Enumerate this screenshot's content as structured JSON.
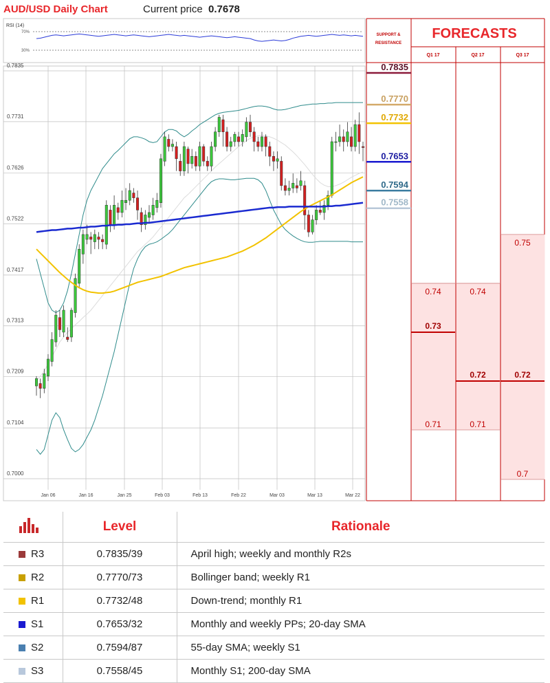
{
  "header": {
    "title": "AUD/USD Daily Chart",
    "price_label": "Current price",
    "price_value": "0.7678"
  },
  "rsi": {
    "label": "RSI (14)",
    "levels": [
      "70%",
      "30%"
    ]
  },
  "chart_data": {
    "type": "candlestick",
    "ylim": [
      0.6995,
      0.784
    ],
    "y_ticks": [
      "0.7835",
      "0.7731",
      "0.7626",
      "0.7522",
      "0.7417",
      "0.7313",
      "0.7209",
      "0.7104",
      "0.7000"
    ],
    "x_ticks": [
      "Jan 06",
      "Jan 16",
      "Jan 25",
      "Feb 03",
      "Feb 13",
      "Feb 22",
      "Mar 03",
      "Mar 13",
      "Mar 22"
    ],
    "candles": [
      [
        0.719,
        0.7205,
        0.717,
        0.721
      ],
      [
        0.7195,
        0.7185,
        0.7165,
        0.7205
      ],
      [
        0.7185,
        0.7215,
        0.7175,
        0.7225
      ],
      [
        0.721,
        0.7245,
        0.72,
        0.7255
      ],
      [
        0.724,
        0.7285,
        0.723,
        0.73
      ],
      [
        0.728,
        0.7335,
        0.727,
        0.7345
      ],
      [
        0.733,
        0.7305,
        0.729,
        0.7345
      ],
      [
        0.73,
        0.7345,
        0.729,
        0.7355
      ],
      [
        0.729,
        0.7285,
        0.728,
        0.731
      ],
      [
        0.729,
        0.7345,
        0.728,
        0.735
      ],
      [
        0.734,
        0.741,
        0.733,
        0.742
      ],
      [
        0.74,
        0.747,
        0.739,
        0.748
      ],
      [
        0.746,
        0.75,
        0.744,
        0.751
      ],
      [
        0.749,
        0.75,
        0.748,
        0.752
      ],
      [
        0.7495,
        0.749,
        0.746,
        0.7505
      ],
      [
        0.7485,
        0.75,
        0.747,
        0.751
      ],
      [
        0.7495,
        0.749,
        0.747,
        0.7505
      ],
      [
        0.749,
        0.7485,
        0.747,
        0.75
      ],
      [
        0.748,
        0.756,
        0.747,
        0.757
      ],
      [
        0.755,
        0.752,
        0.7505,
        0.756
      ],
      [
        0.752,
        0.756,
        0.751,
        0.758
      ],
      [
        0.7555,
        0.7545,
        0.753,
        0.7565
      ],
      [
        0.7545,
        0.757,
        0.7535,
        0.759
      ],
      [
        0.7565,
        0.757,
        0.755,
        0.7595
      ],
      [
        0.757,
        0.759,
        0.756,
        0.7605
      ],
      [
        0.7585,
        0.7575,
        0.7565,
        0.7595
      ],
      [
        0.7575,
        0.755,
        0.753,
        0.759
      ],
      [
        0.7545,
        0.752,
        0.7505,
        0.7555
      ],
      [
        0.752,
        0.754,
        0.751,
        0.755
      ],
      [
        0.7535,
        0.7545,
        0.7525,
        0.756
      ],
      [
        0.754,
        0.756,
        0.753,
        0.7575
      ],
      [
        0.7555,
        0.757,
        0.7545,
        0.7585
      ],
      [
        0.7565,
        0.7655,
        0.7555,
        0.7665
      ],
      [
        0.765,
        0.77,
        0.764,
        0.771
      ],
      [
        0.7695,
        0.768,
        0.767,
        0.7705
      ],
      [
        0.768,
        0.7685,
        0.767,
        0.7695
      ],
      [
        0.768,
        0.7655,
        0.763,
        0.769
      ],
      [
        0.765,
        0.763,
        0.762,
        0.7665
      ],
      [
        0.763,
        0.768,
        0.762,
        0.769
      ],
      [
        0.7675,
        0.7645,
        0.7625,
        0.768
      ],
      [
        0.7645,
        0.766,
        0.7635,
        0.7675
      ],
      [
        0.766,
        0.764,
        0.763,
        0.767
      ],
      [
        0.764,
        0.768,
        0.763,
        0.769
      ],
      [
        0.768,
        0.765,
        0.764,
        0.7685
      ],
      [
        0.765,
        0.764,
        0.763,
        0.766
      ],
      [
        0.764,
        0.768,
        0.763,
        0.769
      ],
      [
        0.768,
        0.771,
        0.767,
        0.772
      ],
      [
        0.771,
        0.774,
        0.77,
        0.7745
      ],
      [
        0.7735,
        0.771,
        0.768,
        0.7745
      ],
      [
        0.771,
        0.768,
        0.767,
        0.772
      ],
      [
        0.768,
        0.769,
        0.767,
        0.77
      ],
      [
        0.769,
        0.7705,
        0.768,
        0.771
      ],
      [
        0.77,
        0.769,
        0.768,
        0.771
      ],
      [
        0.769,
        0.7705,
        0.768,
        0.7715
      ],
      [
        0.77,
        0.773,
        0.769,
        0.774
      ],
      [
        0.773,
        0.771,
        0.77,
        0.7745
      ],
      [
        0.771,
        0.769,
        0.767,
        0.772
      ],
      [
        0.769,
        0.768,
        0.767,
        0.77
      ],
      [
        0.768,
        0.77,
        0.767,
        0.771
      ],
      [
        0.77,
        0.768,
        0.766,
        0.7705
      ],
      [
        0.768,
        0.766,
        0.764,
        0.769
      ],
      [
        0.766,
        0.765,
        0.763,
        0.767
      ],
      [
        0.765,
        0.7655,
        0.7635,
        0.767
      ],
      [
        0.765,
        0.76,
        0.759,
        0.766
      ],
      [
        0.76,
        0.759,
        0.758,
        0.7615
      ],
      [
        0.759,
        0.7595,
        0.758,
        0.761
      ],
      [
        0.7595,
        0.7605,
        0.7585,
        0.7625
      ],
      [
        0.76,
        0.7595,
        0.7585,
        0.7615
      ],
      [
        0.76,
        0.761,
        0.759,
        0.763
      ],
      [
        0.76,
        0.754,
        0.751,
        0.761
      ],
      [
        0.754,
        0.7505,
        0.7495,
        0.755
      ],
      [
        0.7505,
        0.753,
        0.75,
        0.754
      ],
      [
        0.753,
        0.755,
        0.752,
        0.756
      ],
      [
        0.755,
        0.7545,
        0.754,
        0.757
      ],
      [
        0.7545,
        0.756,
        0.753,
        0.757
      ],
      [
        0.756,
        0.758,
        0.755,
        0.759
      ],
      [
        0.758,
        0.769,
        0.7575,
        0.77
      ],
      [
        0.769,
        0.769,
        0.767,
        0.771
      ],
      [
        0.769,
        0.77,
        0.768,
        0.7725
      ],
      [
        0.77,
        0.769,
        0.767,
        0.7715
      ],
      [
        0.769,
        0.771,
        0.768,
        0.773
      ],
      [
        0.77,
        0.768,
        0.767,
        0.772
      ],
      [
        0.768,
        0.7725,
        0.767,
        0.7735
      ],
      [
        0.7725,
        0.769,
        0.7665,
        0.775
      ],
      [
        0.768,
        0.7678,
        0.765,
        0.769
      ]
    ],
    "sma200": [
      0.7505,
      0.7506,
      0.7507,
      0.7508,
      0.7509,
      0.7509,
      0.751,
      0.7511,
      0.7512,
      0.7512,
      0.7513,
      0.7514,
      0.7514,
      0.7515,
      0.7516,
      0.7516,
      0.7517,
      0.7518,
      0.7518,
      0.7519,
      0.7519,
      0.752,
      0.752,
      0.7521,
      0.7521,
      0.7522,
      0.7523,
      0.7523,
      0.7524,
      0.7524,
      0.7525,
      0.7526,
      0.7527,
      0.7528,
      0.7529,
      0.753,
      0.7531,
      0.7532,
      0.7533,
      0.7534,
      0.7535,
      0.7536,
      0.7537,
      0.7538,
      0.7539,
      0.754,
      0.7541,
      0.7542,
      0.7543,
      0.7544,
      0.7545,
      0.7546,
      0.7547,
      0.7548,
      0.7549,
      0.755,
      0.7551,
      0.7552,
      0.7553,
      0.7554,
      0.7555,
      0.7555,
      0.7556,
      0.7556,
      0.7556,
      0.7557,
      0.7557,
      0.7557,
      0.7557,
      0.7557,
      0.7557,
      0.7557,
      0.7557,
      0.7557,
      0.7557,
      0.7558,
      0.7558,
      0.7559,
      0.7559,
      0.756,
      0.7561,
      0.7562,
      0.7563,
      0.7564,
      0.7565
    ],
    "sma55": [
      0.747,
      0.7462,
      0.7454,
      0.7446,
      0.7438,
      0.743,
      0.7422,
      0.7415,
      0.7408,
      0.7402,
      0.7396,
      0.7391,
      0.7387,
      0.7384,
      0.7382,
      0.7381,
      0.738,
      0.738,
      0.7381,
      0.7382,
      0.7384,
      0.7387,
      0.739,
      0.7393,
      0.7396,
      0.7399,
      0.7402,
      0.7404,
      0.7406,
      0.7408,
      0.741,
      0.7412,
      0.7414,
      0.7417,
      0.742,
      0.7423,
      0.7426,
      0.7429,
      0.7432,
      0.7434,
      0.7436,
      0.7438,
      0.744,
      0.7442,
      0.7444,
      0.7446,
      0.7448,
      0.745,
      0.7452,
      0.7454,
      0.7457,
      0.746,
      0.7463,
      0.7466,
      0.747,
      0.7474,
      0.7478,
      0.7483,
      0.7488,
      0.7493,
      0.7499,
      0.7505,
      0.7511,
      0.7517,
      0.7523,
      0.7529,
      0.7535,
      0.7541,
      0.7547,
      0.7552,
      0.7557,
      0.7561,
      0.7565,
      0.7569,
      0.7573,
      0.7577,
      0.7581,
      0.7586,
      0.7591,
      0.7596,
      0.7601,
      0.7606,
      0.761,
      0.7614,
      0.7618
    ],
    "sma20": [
      0.72,
      0.721,
      0.722,
      0.7235,
      0.725,
      0.7265,
      0.728,
      0.729,
      0.73,
      0.7307,
      0.7315,
      0.7322,
      0.733,
      0.7337,
      0.7345,
      0.7355,
      0.7365,
      0.7375,
      0.7385,
      0.7395,
      0.7405,
      0.7415,
      0.7425,
      0.7435,
      0.7445,
      0.7455,
      0.7465,
      0.7472,
      0.748,
      0.7487,
      0.7495,
      0.7505,
      0.7515,
      0.7525,
      0.7535,
      0.7545,
      0.7555,
      0.7565,
      0.7575,
      0.7582,
      0.759,
      0.7598,
      0.7606,
      0.7614,
      0.7622,
      0.763,
      0.7638,
      0.7645,
      0.7652,
      0.7659,
      0.7666,
      0.7673,
      0.768,
      0.7686,
      0.7692,
      0.7697,
      0.77,
      0.7702,
      0.7703,
      0.7702,
      0.77,
      0.7697,
      0.7693,
      0.7688,
      0.7683,
      0.7676,
      0.7669,
      0.7661,
      0.7652,
      0.7643,
      0.7633,
      0.7623,
      0.7614,
      0.7606,
      0.7601,
      0.7598,
      0.7598,
      0.76,
      0.7603,
      0.7607,
      0.7612,
      0.7617,
      0.7621,
      0.7625,
      0.7628
    ],
    "bb_upper": [
      0.745,
      0.742,
      0.739,
      0.736,
      0.7345,
      0.734,
      0.7345,
      0.736,
      0.7385,
      0.742,
      0.746,
      0.75,
      0.754,
      0.757,
      0.759,
      0.7605,
      0.762,
      0.7635,
      0.7645,
      0.7655,
      0.7665,
      0.7672,
      0.768,
      0.7688,
      0.7696,
      0.77,
      0.77,
      0.7698,
      0.7695,
      0.769,
      0.7688,
      0.769,
      0.77,
      0.771,
      0.7715,
      0.7715,
      0.7712,
      0.7705,
      0.77,
      0.7705,
      0.7712,
      0.7718,
      0.7725,
      0.773,
      0.7735,
      0.774,
      0.7745,
      0.7748,
      0.775,
      0.7751,
      0.7752,
      0.7753,
      0.7754,
      0.7756,
      0.7758,
      0.776,
      0.7762,
      0.7763,
      0.7763,
      0.7762,
      0.776,
      0.7757,
      0.7755,
      0.7755,
      0.7756,
      0.7758,
      0.776,
      0.7762,
      0.7764,
      0.7765,
      0.7766,
      0.7767,
      0.7767,
      0.7768,
      0.7768,
      0.7769,
      0.7769,
      0.777,
      0.777,
      0.777,
      0.777,
      0.777,
      0.777,
      0.777,
      0.777
    ],
    "bb_lower": [
      0.706,
      0.705,
      0.706,
      0.709,
      0.712,
      0.7135,
      0.7125,
      0.71,
      0.708,
      0.7062,
      0.7055,
      0.706,
      0.707,
      0.7085,
      0.71,
      0.712,
      0.7145,
      0.717,
      0.72,
      0.723,
      0.726,
      0.7295,
      0.733,
      0.7365,
      0.74,
      0.743,
      0.745,
      0.7465,
      0.7475,
      0.748,
      0.7482,
      0.7485,
      0.749,
      0.7496,
      0.7502,
      0.751,
      0.752,
      0.753,
      0.754,
      0.755,
      0.756,
      0.757,
      0.758,
      0.759,
      0.76,
      0.7608,
      0.7612,
      0.7614,
      0.7614,
      0.7613,
      0.7612,
      0.7612,
      0.7613,
      0.7614,
      0.7615,
      0.7615,
      0.7615,
      0.7612,
      0.7605,
      0.759,
      0.757,
      0.755,
      0.7535,
      0.752,
      0.751,
      0.7503,
      0.7497,
      0.7492,
      0.7488,
      0.7485,
      0.7484,
      0.7484,
      0.7485,
      0.7486,
      0.7486,
      0.7486,
      0.7486,
      0.7486,
      0.7486,
      0.7486,
      0.7486,
      0.7485,
      0.7485,
      0.7485,
      0.7485
    ],
    "rsi_values": [
      55,
      56,
      58,
      60,
      62,
      63,
      62,
      61,
      62,
      63,
      64,
      65,
      64,
      63,
      62,
      61,
      60,
      61,
      62,
      63,
      64,
      63,
      62,
      61,
      62,
      63,
      62,
      61,
      60,
      59,
      60,
      61,
      62,
      63,
      64,
      63,
      62,
      61,
      62,
      61,
      60,
      59,
      58,
      59,
      60,
      61,
      60,
      59,
      58,
      57,
      58,
      59,
      58,
      57,
      56,
      55,
      52,
      50,
      49,
      50,
      51,
      52,
      51,
      50,
      51,
      53,
      56,
      58,
      60,
      61,
      62,
      61,
      60,
      61,
      62,
      63,
      64,
      63,
      62,
      63,
      62,
      61,
      62,
      61,
      60
    ],
    "sr_levels": [
      {
        "value": "0.7835",
        "color": "#8b1a3a",
        "text_color": "#5a1027",
        "y": 0.7835
      },
      {
        "value": "0.7770",
        "color": "#d4aa6a",
        "text_color": "#c8a060",
        "y": 0.777
      },
      {
        "value": "0.7732",
        "color": "#f2c200",
        "text_color": "#e0a800",
        "y": 0.7732
      },
      {
        "value": "0.7653",
        "color": "#1a1ad0",
        "text_color": "#1a1aa0",
        "y": 0.7653
      },
      {
        "value": "0.7594",
        "color": "#3a7ca0",
        "text_color": "#2f6a8a",
        "y": 0.7594
      },
      {
        "value": "0.7558",
        "color": "#b8c8d8",
        "text_color": "#a0b8c8",
        "y": 0.7558
      }
    ]
  },
  "forecasts": {
    "title": "FORECASTS",
    "sr_header": [
      "SUPPORT &",
      "RESISTANCE"
    ],
    "quarters": [
      {
        "label": "Q1 17",
        "high": "0.74",
        "mid": "0.73",
        "low": "0.71",
        "high_y": 0.74,
        "mid_y": 0.73,
        "low_y": 0.71
      },
      {
        "label": "Q2 17",
        "high": "0.74",
        "mid": "0.72",
        "low": "0.71",
        "high_y": 0.74,
        "mid_y": 0.72,
        "low_y": 0.71
      },
      {
        "label": "Q3 17",
        "high": "0.75",
        "mid": "0.72",
        "low": "0.7",
        "high_y": 0.75,
        "mid_y": 0.72,
        "low_y": 0.6995
      }
    ]
  },
  "levels_table": {
    "header_level": "Level",
    "header_rationale": "Rationale",
    "rows": [
      {
        "name": "R3",
        "color": "#9b3a3a",
        "level": "0.7835/39",
        "rationale": "April high; weekly and monthly R2s"
      },
      {
        "name": "R2",
        "color": "#c8a000",
        "level": "0.7770/73",
        "rationale": "Bollinger band; weekly R1"
      },
      {
        "name": "R1",
        "color": "#f2c200",
        "level": "0.7732/48",
        "rationale": "Down-trend; monthly R1"
      },
      {
        "name": "S1",
        "color": "#1a1ad0",
        "level": "0.7653/32",
        "rationale": "Monthly and weekly PPs; 20-day SMA"
      },
      {
        "name": "S2",
        "color": "#4a7fb0",
        "level": "0.7594/87",
        "rationale": "55-day SMA; weekly S1"
      },
      {
        "name": "S3",
        "color": "#b8c8dc",
        "level": "0.7558/45",
        "rationale": "Monthly S1; 200-day SMA"
      }
    ]
  }
}
